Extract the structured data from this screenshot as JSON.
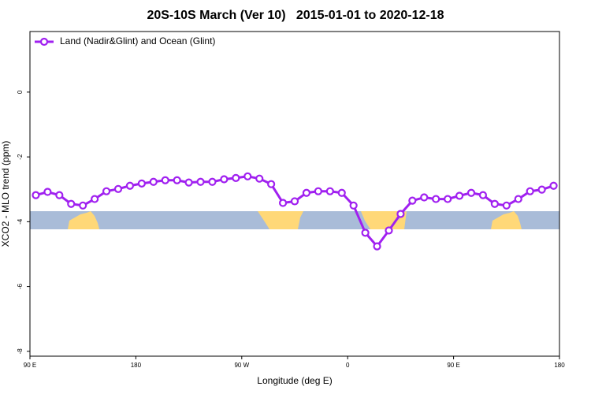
{
  "chart_data": {
    "type": "line",
    "title": "20S-10S March (Ver 10)   2015-01-01 to 2020-12-18",
    "xlabel": "Longitude (deg E)",
    "ylabel": "XCO2 - MLO trend (ppm)",
    "xlim": [
      90,
      540
    ],
    "ylim": [
      -8.15,
      1.87
    ],
    "xticks": [
      {
        "value": 90,
        "label": "90 E"
      },
      {
        "value": 180,
        "label": "180"
      },
      {
        "value": 270,
        "label": "90 W"
      },
      {
        "value": 360,
        "label": "0"
      },
      {
        "value": 450,
        "label": "90 E"
      },
      {
        "value": 540,
        "label": "180"
      }
    ],
    "yticks": [
      0,
      -2,
      -4,
      -6,
      -8
    ],
    "legend": "top-left",
    "x": [
      95,
      105,
      115,
      125,
      135,
      145,
      155,
      165,
      175,
      185,
      195,
      205,
      215,
      225,
      235,
      245,
      255,
      265,
      275,
      285,
      295,
      305,
      315,
      325,
      335,
      345,
      355,
      365,
      375,
      385,
      395,
      405,
      415,
      425,
      435,
      445,
      455,
      465,
      475,
      485,
      495,
      505,
      515,
      525,
      535
    ],
    "series": [
      {
        "name": "Land (Nadir&Glint) and Ocean (Glint)",
        "color": "#a020f0",
        "values": [
          -3.18,
          -3.08,
          -3.18,
          -3.45,
          -3.5,
          -3.3,
          -3.06,
          -2.99,
          -2.89,
          -2.82,
          -2.77,
          -2.72,
          -2.72,
          -2.79,
          -2.77,
          -2.77,
          -2.69,
          -2.65,
          -2.6,
          -2.67,
          -2.84,
          -3.42,
          -3.37,
          -3.11,
          -3.06,
          -3.06,
          -3.11,
          -3.5,
          -4.34,
          -4.76,
          -4.27,
          -3.76,
          -3.35,
          -3.25,
          -3.3,
          -3.3,
          -3.2,
          -3.11,
          -3.18,
          -3.45,
          -3.5,
          -3.3,
          -3.06,
          -3.01,
          -2.89
        ]
      }
    ]
  }
}
